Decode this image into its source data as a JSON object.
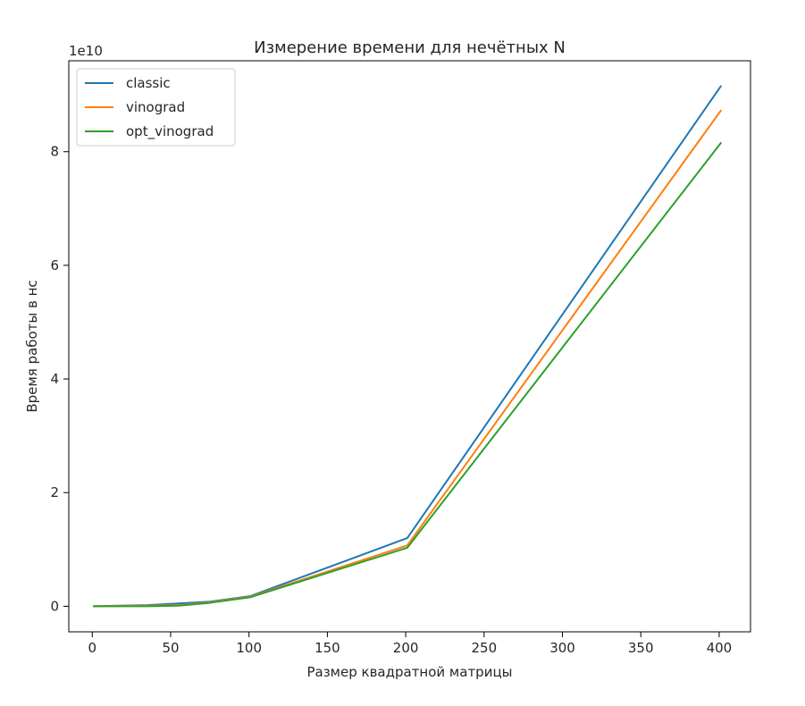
{
  "chart_data": {
    "type": "line",
    "title": "Измерение времени для нечётных N",
    "xlabel": "Размер квадратной матрицы",
    "ylabel": "Время работы в нс",
    "y_offset_label": "1e10",
    "xlim": [
      -15,
      420
    ],
    "ylim": [
      -0.45,
      9.6
    ],
    "y_unit": "1e10 ns",
    "xticks": [
      0,
      50,
      100,
      150,
      200,
      250,
      300,
      350,
      400
    ],
    "yticks": [
      0,
      2,
      4,
      6,
      8
    ],
    "grid": false,
    "legend_position": "upper-left",
    "series": [
      {
        "name": "classic",
        "color": "#1f77b4",
        "points": [
          [
            1,
            0.0
          ],
          [
            35,
            0.02
          ],
          [
            55,
            0.05
          ],
          [
            75,
            0.08
          ],
          [
            101,
            0.18
          ],
          [
            201,
            1.2
          ],
          [
            401,
            9.15
          ]
        ]
      },
      {
        "name": "vinograd",
        "color": "#ff7f0e",
        "points": [
          [
            1,
            0.0
          ],
          [
            35,
            0.01
          ],
          [
            55,
            0.02
          ],
          [
            75,
            0.07
          ],
          [
            101,
            0.17
          ],
          [
            201,
            1.07
          ],
          [
            401,
            8.72
          ]
        ]
      },
      {
        "name": "opt_vinograd",
        "color": "#2ca02c",
        "points": [
          [
            1,
            0.0
          ],
          [
            35,
            0.0
          ],
          [
            55,
            0.01
          ],
          [
            75,
            0.06
          ],
          [
            101,
            0.16
          ],
          [
            201,
            1.03
          ],
          [
            401,
            8.15
          ]
        ]
      }
    ]
  }
}
